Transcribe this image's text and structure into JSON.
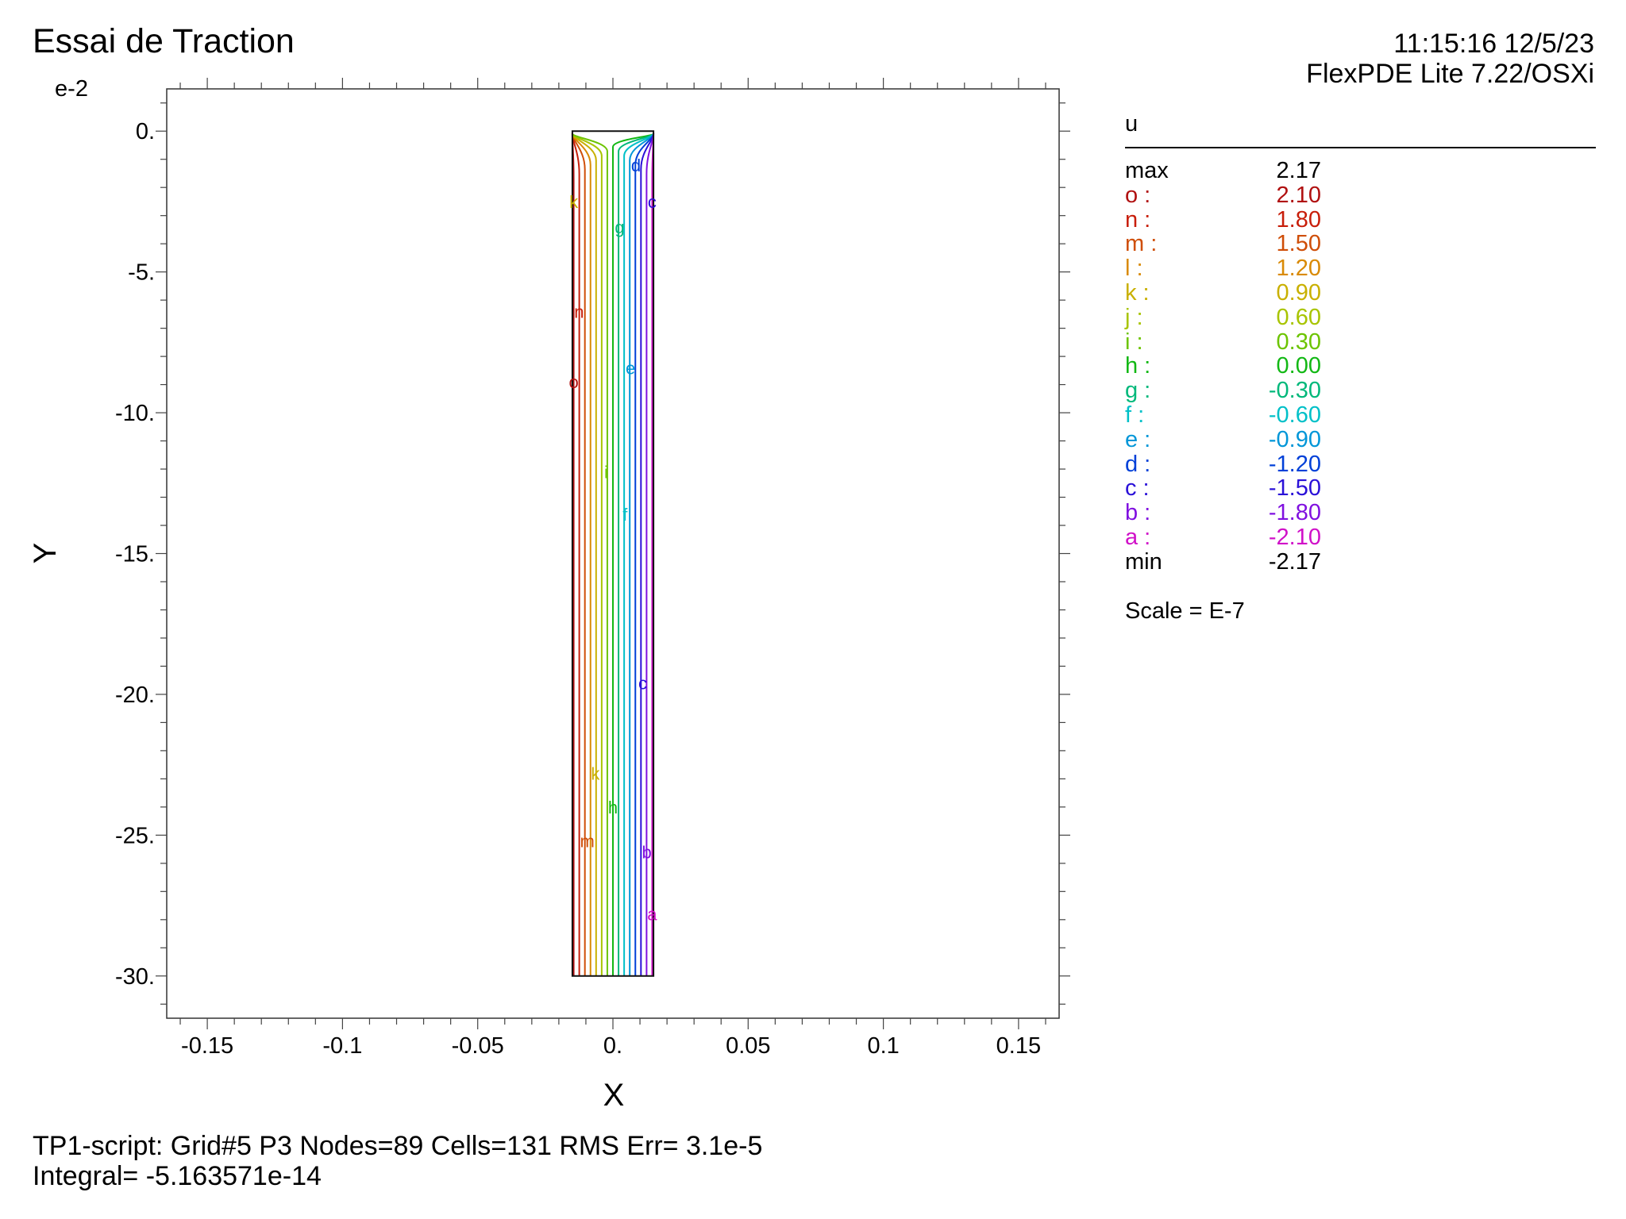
{
  "header": {
    "title": "Essai de Traction",
    "timestamp": "11:15:16 12/5/23",
    "program": "FlexPDE Lite 7.22/OSXi"
  },
  "chart_data": {
    "type": "contour",
    "variable": "u",
    "xlabel": "X",
    "ylabel": "Y",
    "y_exponent_label": "e-2",
    "xlim": [
      -0.165,
      0.165
    ],
    "ylim": [
      -31.5,
      1.5
    ],
    "x_ticks": [
      {
        "v": -0.15,
        "label": "-0.15"
      },
      {
        "v": -0.1,
        "label": "-0.1"
      },
      {
        "v": -0.05,
        "label": "-0.05"
      },
      {
        "v": 0,
        "label": "0."
      },
      {
        "v": 0.05,
        "label": "0.05"
      },
      {
        "v": 0.1,
        "label": "0.1"
      },
      {
        "v": 0.15,
        "label": "0.15"
      }
    ],
    "y_ticks": [
      {
        "v": 0,
        "label": "0."
      },
      {
        "v": -5,
        "label": "-5."
      },
      {
        "v": -10,
        "label": "-10."
      },
      {
        "v": -15,
        "label": "-15."
      },
      {
        "v": -20,
        "label": "-20."
      },
      {
        "v": -25,
        "label": "-25."
      },
      {
        "v": -30,
        "label": "-30."
      }
    ],
    "domain": {
      "x": [
        -0.015,
        0.015
      ],
      "y": [
        -30,
        0
      ]
    },
    "max": "2.17",
    "min": "-2.17",
    "scale_note": "Scale = E-7",
    "levels": [
      {
        "letter": "o",
        "value": "2.10",
        "color": "#b01010"
      },
      {
        "letter": "n",
        "value": "1.80",
        "color": "#c81e0a"
      },
      {
        "letter": "m",
        "value": "1.50",
        "color": "#cf4e08"
      },
      {
        "letter": "l",
        "value": "1.20",
        "color": "#d98a05"
      },
      {
        "letter": "k",
        "value": "0.90",
        "color": "#c9b000"
      },
      {
        "letter": "j",
        "value": "0.60",
        "color": "#a8c400"
      },
      {
        "letter": "i",
        "value": "0.30",
        "color": "#6cc400"
      },
      {
        "letter": "h",
        "value": "0.00",
        "color": "#12b814"
      },
      {
        "letter": "g",
        "value": "-0.30",
        "color": "#00b87a"
      },
      {
        "letter": "f",
        "value": "-0.60",
        "color": "#00c0c8"
      },
      {
        "letter": "e",
        "value": "-0.90",
        "color": "#0096d8"
      },
      {
        "letter": "d",
        "value": "-1.20",
        "color": "#0040d8"
      },
      {
        "letter": "c",
        "value": "-1.50",
        "color": "#2a10d8"
      },
      {
        "letter": "b",
        "value": "-1.80",
        "color": "#8010e0"
      },
      {
        "letter": "a",
        "value": "-2.10",
        "color": "#d010c8"
      }
    ],
    "contour_labels": [
      {
        "letter": "d",
        "x": 0.0085,
        "y": -1.2
      },
      {
        "letter": "c",
        "x": 0.0145,
        "y": -2.5
      },
      {
        "letter": "k",
        "x": -0.0145,
        "y": -2.5
      },
      {
        "letter": "g",
        "x": 0.0025,
        "y": -3.4
      },
      {
        "letter": "n",
        "x": -0.0125,
        "y": -6.4
      },
      {
        "letter": "e",
        "x": 0.0065,
        "y": -8.4
      },
      {
        "letter": "o",
        "x": -0.0145,
        "y": -8.9
      },
      {
        "letter": "i",
        "x": -0.0025,
        "y": -12.1
      },
      {
        "letter": "f",
        "x": 0.0045,
        "y": -13.6
      },
      {
        "letter": "c",
        "x": 0.011,
        "y": -19.6
      },
      {
        "letter": "k",
        "x": -0.0065,
        "y": -22.8
      },
      {
        "letter": "h",
        "x": 0.0,
        "y": -24.0
      },
      {
        "letter": "m",
        "x": -0.0095,
        "y": -25.2
      },
      {
        "letter": "b",
        "x": 0.0125,
        "y": -25.6
      },
      {
        "letter": "a",
        "x": 0.0145,
        "y": -27.8
      }
    ]
  },
  "legend": {
    "max_label": "max",
    "min_label": "min"
  },
  "footer": {
    "line1": "TP1-script:  Grid#5  P3  Nodes=89 Cells=131 RMS Err= 3.1e-5",
    "line2": "Integral= -5.163571e-14"
  }
}
